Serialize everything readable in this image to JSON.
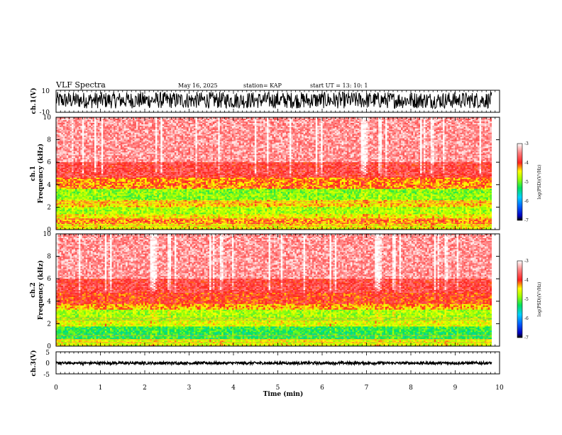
{
  "header": {
    "title": "VLF Spectra",
    "date": "May 16, 2025",
    "station": "station= KAP",
    "start": "start  UT  =   13: 10: 1"
  },
  "chart_data": [
    {
      "type": "line",
      "name": "ch1-waveform",
      "ylabel": "ch.1(V)",
      "ylim": [
        -10,
        10
      ],
      "yticks": [
        "10",
        "-10"
      ],
      "xlim": [
        0,
        10
      ],
      "signal_extent_min": 9.82,
      "amplitude_range": [
        -6.5,
        8.5
      ]
    },
    {
      "type": "heatmap",
      "name": "ch1-spectrogram",
      "ylabel": "ch.1\nFrequency (kHz)",
      "ylim": [
        0,
        10
      ],
      "yticks": [
        "0",
        "2",
        "4",
        "6",
        "8",
        "10"
      ],
      "xlim": [
        0,
        10
      ],
      "signal_extent_min": 9.82,
      "bands": [
        {
          "from": 0.0,
          "to": 0.5,
          "level": -4.5
        },
        {
          "from": 0.5,
          "to": 1.0,
          "level": -4.2
        },
        {
          "from": 1.0,
          "to": 1.4,
          "level": -4.5
        },
        {
          "from": 1.4,
          "to": 2.0,
          "level": -4.8
        },
        {
          "from": 2.0,
          "to": 2.6,
          "level": -4.4
        },
        {
          "from": 2.6,
          "to": 3.6,
          "level": -4.9
        },
        {
          "from": 3.6,
          "to": 4.6,
          "level": -4.2
        },
        {
          "from": 4.6,
          "to": 6.0,
          "level": -3.8
        },
        {
          "from": 6.0,
          "to": 10.0,
          "level": -3.4
        }
      ],
      "colorbar": {
        "label": "log(PSD)(V²/Hz)",
        "min": -7,
        "max": -3,
        "ticks": [
          "-3",
          "-4",
          "-5",
          "-6",
          "-7"
        ]
      }
    },
    {
      "type": "heatmap",
      "name": "ch2-spectrogram",
      "ylabel": "ch.2\nFrequency (kHz)",
      "ylim": [
        0,
        10
      ],
      "yticks": [
        "0",
        "2",
        "4",
        "6",
        "8",
        "10"
      ],
      "xlim": [
        0,
        10
      ],
      "signal_extent_min": 9.82,
      "bands": [
        {
          "from": 0.0,
          "to": 0.6,
          "level": -4.6
        },
        {
          "from": 0.6,
          "to": 1.7,
          "level": -5.2
        },
        {
          "from": 1.7,
          "to": 2.2,
          "level": -4.6
        },
        {
          "from": 2.2,
          "to": 3.2,
          "level": -4.8
        },
        {
          "from": 3.2,
          "to": 3.8,
          "level": -4.3
        },
        {
          "from": 3.8,
          "to": 4.8,
          "level": -4.0
        },
        {
          "from": 4.8,
          "to": 6.0,
          "level": -3.8
        },
        {
          "from": 6.0,
          "to": 10.0,
          "level": -3.4
        }
      ],
      "colorbar": {
        "label": "log(PSD)(V²/Hz)",
        "min": -7,
        "max": -3,
        "ticks": [
          "-3",
          "-4",
          "-5",
          "-6",
          "-7"
        ]
      }
    },
    {
      "type": "line",
      "name": "ch3-waveform",
      "ylabel": "ch.3(V)",
      "ylim": [
        -5,
        5
      ],
      "yticks": [
        "5",
        "0",
        "-5"
      ],
      "xlim": [
        0,
        10
      ],
      "signal_extent_min": 9.82,
      "amplitude_range": [
        -0.7,
        0.5
      ]
    }
  ],
  "xaxis": {
    "label": "Time (min)",
    "ticks": [
      "0",
      "1",
      "2",
      "3",
      "4",
      "5",
      "6",
      "7",
      "8",
      "9",
      "10"
    ]
  }
}
